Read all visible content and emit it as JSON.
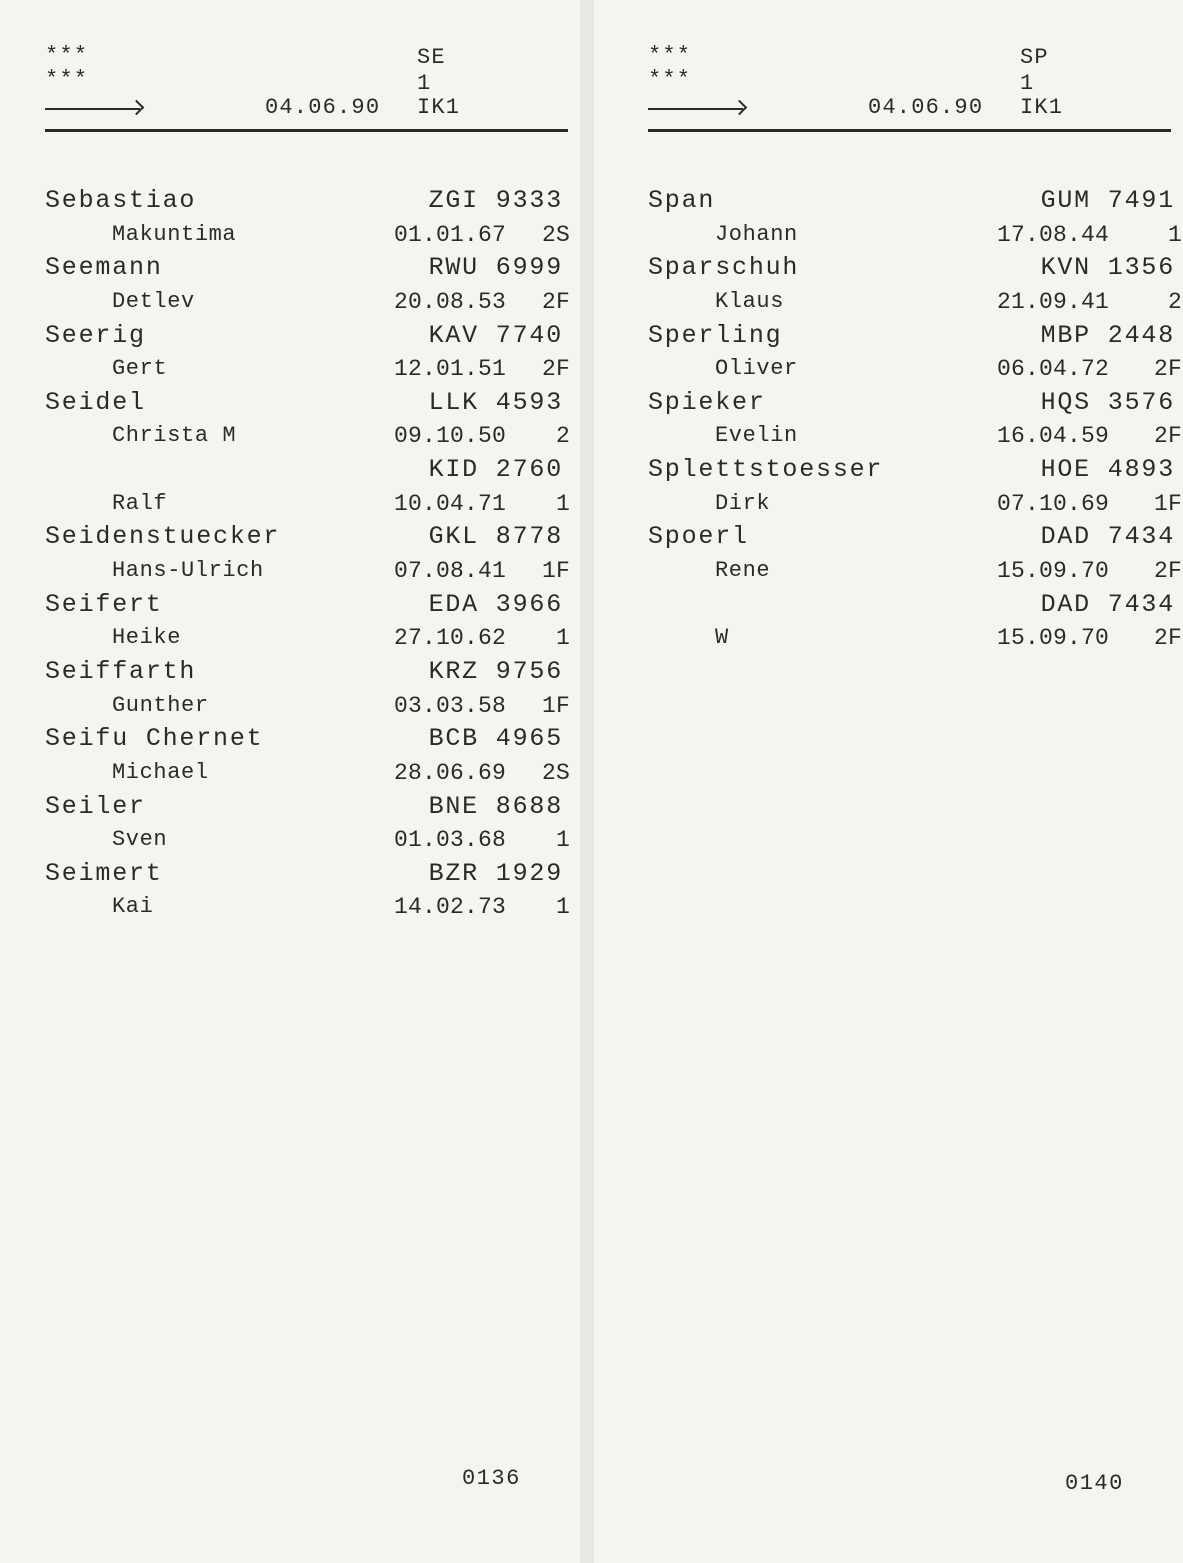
{
  "pages": [
    {
      "header": {
        "stars1": "***",
        "stars2": "***",
        "section": "SE",
        "number": "1",
        "date": "04.06.90",
        "code": "IK1"
      },
      "entries": [
        {
          "surname": "Sebastiao",
          "code": "ZGI 9333",
          "given": "Makuntima",
          "date": "01.01.67",
          "cls": "2S"
        },
        {
          "surname": "Seemann",
          "code": "RWU 6999",
          "given": "Detlev",
          "date": "20.08.53",
          "cls": "2F"
        },
        {
          "surname": "Seerig",
          "code": "KAV 7740",
          "given": "Gert",
          "date": "12.01.51",
          "cls": "2F"
        },
        {
          "surname": "Seidel",
          "code": "LLK 4593",
          "given": "Christa M",
          "date": "09.10.50",
          "cls": "2"
        },
        {
          "surname": "",
          "code": "KID 2760",
          "given": "Ralf",
          "date": "10.04.71",
          "cls": "1"
        },
        {
          "surname": "Seidenstuecker",
          "code": "GKL 8778",
          "given": "Hans-Ulrich",
          "date": "07.08.41",
          "cls": "1F"
        },
        {
          "surname": "Seifert",
          "code": "EDA 3966",
          "given": "Heike",
          "date": "27.10.62",
          "cls": "1"
        },
        {
          "surname": "Seiffarth",
          "code": "KRZ 9756",
          "given": "Gunther",
          "date": "03.03.58",
          "cls": "1F"
        },
        {
          "surname": "Seifu Chernet",
          "code": "BCB 4965",
          "given": "Michael",
          "date": "28.06.69",
          "cls": "2S"
        },
        {
          "surname": "Seiler",
          "code": "BNE 8688",
          "given": "Sven",
          "date": "01.03.68",
          "cls": "1"
        },
        {
          "surname": "Seimert",
          "code": "BZR 1929",
          "given": "Kai",
          "date": "14.02.73",
          "cls": "1"
        }
      ],
      "footer": "0136"
    },
    {
      "header": {
        "stars1": "***",
        "stars2": "***",
        "section": "SP",
        "number": "1",
        "date": "04.06.90",
        "code": "IK1"
      },
      "entries": [
        {
          "surname": "Span",
          "code": "GUM 7491",
          "given": "Johann",
          "date": "17.08.44",
          "cls": "1"
        },
        {
          "surname": "Sparschuh",
          "code": "KVN 1356",
          "given": "Klaus",
          "date": "21.09.41",
          "cls": "2"
        },
        {
          "surname": "Sperling",
          "code": "MBP 2448",
          "given": "Oliver",
          "date": "06.04.72",
          "cls": "2F"
        },
        {
          "surname": "Spieker",
          "code": "HQS 3576",
          "given": "Evelin",
          "date": "16.04.59",
          "cls": "2F"
        },
        {
          "surname": "Splettstoesser",
          "code": "HOE 4893",
          "given": "Dirk",
          "date": "07.10.69",
          "cls": "1F"
        },
        {
          "surname": "Spoerl",
          "code": "DAD 7434",
          "given": "Rene",
          "date": "15.09.70",
          "cls": "2F"
        },
        {
          "surname": "",
          "code": "DAD 7434",
          "given": "W",
          "date": "15.09.70",
          "cls": "2F"
        }
      ],
      "footer": "0140"
    }
  ]
}
